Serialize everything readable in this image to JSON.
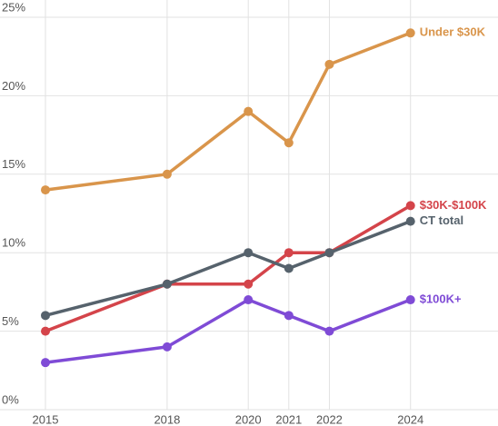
{
  "chart_data": {
    "type": "line",
    "x": [
      2015,
      2018,
      2020,
      2021,
      2022,
      2024
    ],
    "xlim": [
      2015,
      2026
    ],
    "xticks": [
      2015,
      2018,
      2020,
      2021,
      2022,
      2024
    ],
    "ylim": [
      0,
      25
    ],
    "yticks": [
      {
        "value": 0,
        "label": "0%"
      },
      {
        "value": 5,
        "label": "5%"
      },
      {
        "value": 10,
        "label": "10%"
      },
      {
        "value": 15,
        "label": "15%"
      },
      {
        "value": 20,
        "label": "20%"
      },
      {
        "value": 25,
        "label": "25%"
      }
    ],
    "grid": true,
    "series": [
      {
        "name": "Under $30K",
        "color": "#d9954b",
        "values": [
          14,
          15,
          19,
          17,
          22,
          24
        ]
      },
      {
        "name": "$30K-$100K",
        "color": "#d4444a",
        "values": [
          5,
          8,
          8,
          10,
          10,
          13
        ]
      },
      {
        "name": "CT total",
        "color": "#56626c",
        "values": [
          6,
          8,
          10,
          9,
          10,
          12
        ]
      },
      {
        "name": "$100K+",
        "color": "#7f4bd6",
        "values": [
          3,
          4,
          7,
          6,
          5,
          7
        ]
      }
    ]
  }
}
